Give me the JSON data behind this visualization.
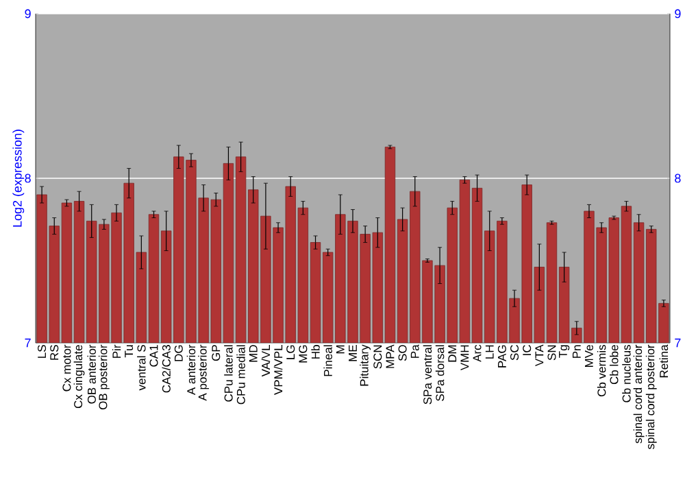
{
  "chart_data": {
    "type": "bar",
    "ylabel": "Log2 (expression)",
    "categories": [
      "LS",
      "RS",
      "Cx motor",
      "Cx cingulate",
      "OB anterior",
      "OB posterior",
      "Pir",
      "Tu",
      "ventral S",
      "CA1",
      "CA2/CA3",
      "DG",
      "A anterior",
      "A posterior",
      "GP",
      "CPu lateral",
      "CPu medial",
      "MD",
      "VA/VL",
      "VPM/VPL",
      "LG",
      "MG",
      "Hb",
      "Pineal",
      "M",
      "ME",
      "Pituitary",
      "SCN",
      "MPA",
      "SO",
      "Pa",
      "SPa ventral",
      "SPa dorsal",
      "DM",
      "VMH",
      "Arc",
      "LH",
      "PAG",
      "SC",
      "IC",
      "VTA",
      "SN",
      "Tg",
      "Pn",
      "MVe",
      "Cb vermis",
      "Cb lobe",
      "Cb nucleus",
      "spinal cord anterior",
      "spinal cord posterior",
      "Retina"
    ],
    "values": [
      7.9,
      7.71,
      7.85,
      7.86,
      7.74,
      7.72,
      7.79,
      7.97,
      7.55,
      7.78,
      7.68,
      8.13,
      8.11,
      7.88,
      7.87,
      8.09,
      8.13,
      7.93,
      7.77,
      7.7,
      7.95,
      7.82,
      7.61,
      7.55,
      7.78,
      7.74,
      7.66,
      7.67,
      8.19,
      7.75,
      7.92,
      7.5,
      7.47,
      7.82,
      7.99,
      7.94,
      7.68,
      7.74,
      7.27,
      7.96,
      7.46,
      7.73,
      7.46,
      7.09,
      7.8,
      7.7,
      7.76,
      7.83,
      7.73,
      7.69,
      7.24
    ],
    "errors": [
      0.05,
      0.05,
      0.02,
      0.06,
      0.1,
      0.03,
      0.05,
      0.09,
      0.1,
      0.02,
      0.12,
      0.07,
      0.04,
      0.08,
      0.04,
      0.1,
      0.09,
      0.08,
      0.2,
      0.03,
      0.06,
      0.04,
      0.04,
      0.02,
      0.12,
      0.07,
      0.05,
      0.09,
      0.01,
      0.07,
      0.09,
      0.01,
      0.11,
      0.04,
      0.02,
      0.08,
      0.12,
      0.02,
      0.05,
      0.06,
      0.14,
      0.01,
      0.09,
      0.04,
      0.04,
      0.03,
      0.01,
      0.03,
      0.05,
      0.02,
      0.02
    ],
    "color": "#b03434",
    "ylim": [
      7,
      9
    ],
    "yticks": [
      7,
      8,
      9
    ],
    "y2lim": [
      7,
      9
    ],
    "y2ticks": [
      7,
      8,
      9
    ],
    "grid": "y"
  }
}
